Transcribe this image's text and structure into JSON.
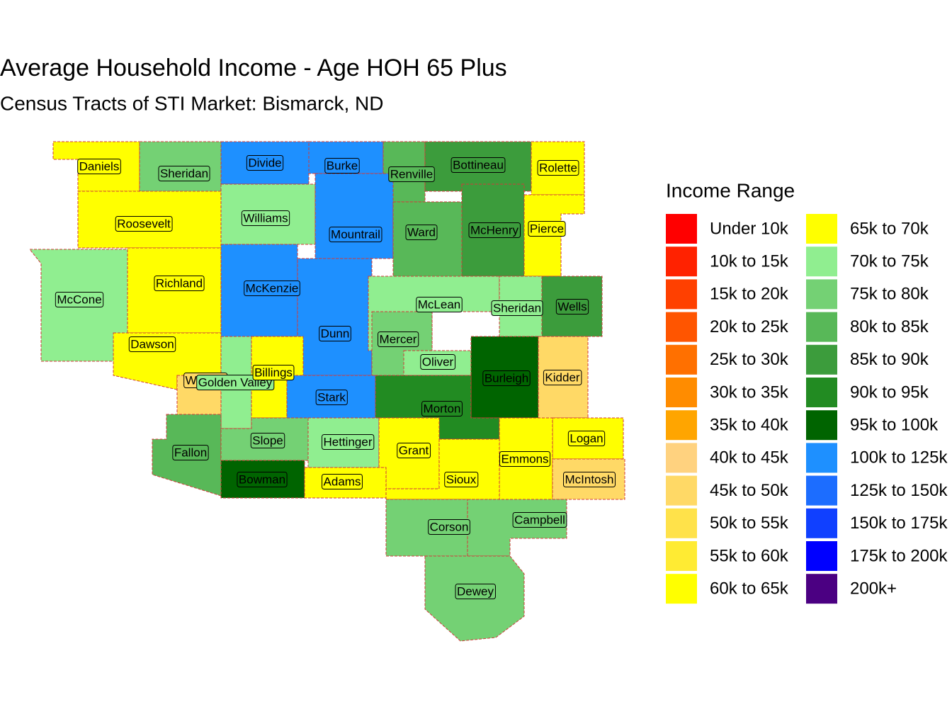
{
  "title": "Average Household Income - Age HOH 65 Plus",
  "subtitle": "Census Tracts of STI Market: Bismarck, ND",
  "legend": {
    "title": "Income Range",
    "items": [
      {
        "label": "Under 10k",
        "color": "#ff0000"
      },
      {
        "label": "10k to 15k",
        "color": "#ff2200"
      },
      {
        "label": "15k to 20k",
        "color": "#ff4000"
      },
      {
        "label": "20k to 25k",
        "color": "#ff5500"
      },
      {
        "label": "25k to 30k",
        "color": "#ff7000"
      },
      {
        "label": "30k to 35k",
        "color": "#ff8c00"
      },
      {
        "label": "35k to 40k",
        "color": "#ffa500"
      },
      {
        "label": "40k to 45k",
        "color": "#ffd27f"
      },
      {
        "label": "45k to 50k",
        "color": "#ffd966"
      },
      {
        "label": "50k to 55k",
        "color": "#ffe24a"
      },
      {
        "label": "55k to 60k",
        "color": "#ffeb33"
      },
      {
        "label": "60k to 65k",
        "color": "#ffff00"
      },
      {
        "label": "65k to 70k",
        "color": "#ffff00"
      },
      {
        "label": "70k to 75k",
        "color": "#90ee90"
      },
      {
        "label": "75k to 80k",
        "color": "#74d174"
      },
      {
        "label": "80k to 85k",
        "color": "#58b858"
      },
      {
        "label": "85k to 90k",
        "color": "#3c9c3c"
      },
      {
        "label": "90k to 95k",
        "color": "#228b22"
      },
      {
        "label": "95k to 100k",
        "color": "#006400"
      },
      {
        "label": "100k to 125k",
        "color": "#1e90ff"
      },
      {
        "label": "125k to 150k",
        "color": "#1c6dff"
      },
      {
        "label": "150k to 175k",
        "color": "#1040ff"
      },
      {
        "label": "175k to 200k",
        "color": "#0000ff"
      },
      {
        "label": "200k+",
        "color": "#4b0082"
      }
    ]
  },
  "counties": [
    {
      "name": "Daniels",
      "color": "#ffff00"
    },
    {
      "name": "Sheridan",
      "color": "#74d174"
    },
    {
      "name": "Divide",
      "color": "#1e90ff"
    },
    {
      "name": "Burke",
      "color": "#1e90ff"
    },
    {
      "name": "Renville",
      "color": "#58b858"
    },
    {
      "name": "Bottineau",
      "color": "#3c9c3c"
    },
    {
      "name": "Rolette",
      "color": "#ffff00"
    },
    {
      "name": "Roosevelt",
      "color": "#ffff00"
    },
    {
      "name": "Williams",
      "color": "#90ee90"
    },
    {
      "name": "Mountrail",
      "color": "#1e90ff"
    },
    {
      "name": "Ward",
      "color": "#58b858"
    },
    {
      "name": "McHenry",
      "color": "#3c9c3c"
    },
    {
      "name": "Pierce",
      "color": "#ffff00"
    },
    {
      "name": "McCone",
      "color": "#90ee90"
    },
    {
      "name": "Richland",
      "color": "#ffff00"
    },
    {
      "name": "McKenzie",
      "color": "#1e90ff"
    },
    {
      "name": "Dunn",
      "color": "#1e90ff"
    },
    {
      "name": "McLean",
      "color": "#90ee90"
    },
    {
      "name": "Sheridan",
      "color": "#90ee90"
    },
    {
      "name": "Wells",
      "color": "#3c9c3c"
    },
    {
      "name": "Dawson",
      "color": "#ffff00"
    },
    {
      "name": "Mercer",
      "color": "#74d174"
    },
    {
      "name": "Oliver",
      "color": "#90ee90"
    },
    {
      "name": "Wibaux",
      "color": "#ffd966"
    },
    {
      "name": "Golden Valley",
      "color": "#90ee90"
    },
    {
      "name": "Billings",
      "color": "#ffff00"
    },
    {
      "name": "Stark",
      "color": "#1e90ff"
    },
    {
      "name": "Burleigh",
      "color": "#006400"
    },
    {
      "name": "Kidder",
      "color": "#ffd966"
    },
    {
      "name": "Morton",
      "color": "#228b22"
    },
    {
      "name": "Fallon",
      "color": "#58b858"
    },
    {
      "name": "Slope",
      "color": "#74d174"
    },
    {
      "name": "Hettinger",
      "color": "#90ee90"
    },
    {
      "name": "Grant",
      "color": "#ffff00"
    },
    {
      "name": "Logan",
      "color": "#ffff00"
    },
    {
      "name": "Emmons",
      "color": "#ffff00"
    },
    {
      "name": "McIntosh",
      "color": "#ffd966"
    },
    {
      "name": "Bowman",
      "color": "#006400"
    },
    {
      "name": "Adams",
      "color": "#ffff00"
    },
    {
      "name": "Sioux",
      "color": "#ffff00"
    },
    {
      "name": "Corson",
      "color": "#74d174"
    },
    {
      "name": "Campbell",
      "color": "#74d174"
    },
    {
      "name": "Dewey",
      "color": "#74d174"
    }
  ]
}
